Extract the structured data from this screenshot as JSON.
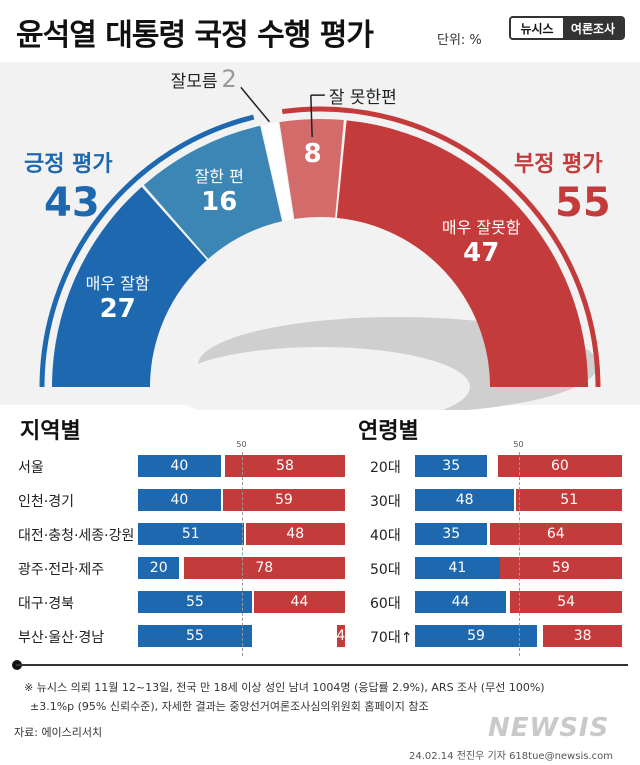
{
  "header": {
    "title": "윤석열 대통령 국정 수행 평가",
    "unit": "단위: %",
    "badge_left": "뉴시스",
    "badge_right": "여론조사"
  },
  "colors": {
    "positive": "#1e68b0",
    "very_good": "#1e68b0",
    "good": "#3b86b4",
    "bad": "#d36b6b",
    "very_bad": "#c33b3b",
    "negative": "#c33b3b"
  },
  "chart_data": [
    {
      "type": "pie",
      "chart_form": "semicircle-donut",
      "slices": [
        {
          "label": "매우 잘함",
          "value": 27,
          "color": "#1e68b0"
        },
        {
          "label": "잘한 편",
          "value": 16,
          "color": "#3b86b4"
        },
        {
          "label": "잘모름",
          "value": 2,
          "color": "#bfbfbf"
        },
        {
          "label": "잘 못한편",
          "value": 8,
          "color": "#d36b6b"
        },
        {
          "label": "매우 잘못함",
          "value": 47,
          "color": "#c33b3b"
        }
      ],
      "groups": [
        {
          "label": "긍정 평가",
          "value": 43,
          "color": "#1e68b0"
        },
        {
          "label": "부정 평가",
          "value": 55,
          "color": "#c33b3b"
        }
      ]
    },
    {
      "type": "bar",
      "orientation": "horizontal-diverging",
      "title": "지역별",
      "reference_line": 50,
      "categories": [
        "서울",
        "인천·경기",
        "대전·충청·세종·강원",
        "광주·전라·제주",
        "대구·경북",
        "부산·울산·경남"
      ],
      "series": [
        {
          "values": [
            40,
            40,
            51,
            20,
            55,
            55
          ],
          "color": "#1e68b0"
        },
        {
          "values": [
            58,
            59,
            48,
            78,
            44,
            4
          ],
          "color": "#c33b3b"
        }
      ]
    },
    {
      "type": "bar",
      "orientation": "horizontal-diverging",
      "title": "연령별",
      "reference_line": 50,
      "categories": [
        "20대",
        "30대",
        "40대",
        "50대",
        "60대",
        "70대↑"
      ],
      "series": [
        {
          "values": [
            35,
            48,
            35,
            41,
            44,
            59
          ],
          "color": "#1e68b0"
        },
        {
          "values": [
            60,
            51,
            64,
            59,
            54,
            38
          ],
          "color": "#c33b3b"
        }
      ]
    }
  ],
  "footer": {
    "note1": "※ 뉴시스 의뢰 11월 12~13일, 전국 만 18세 이상 성인 남녀 1004명 (응답률 2.9%), ARS 조사 (무선 100%)",
    "note2": "±3.1%p (95% 신뢰수준), 자세한 결과는 중앙선거여론조사심의위원회 홈페이지 참조",
    "source": "자료: 에이스리서치",
    "credit": "24.02.14 전진우 기자 618tue@newsis.com",
    "logo": "NEWSIS"
  }
}
